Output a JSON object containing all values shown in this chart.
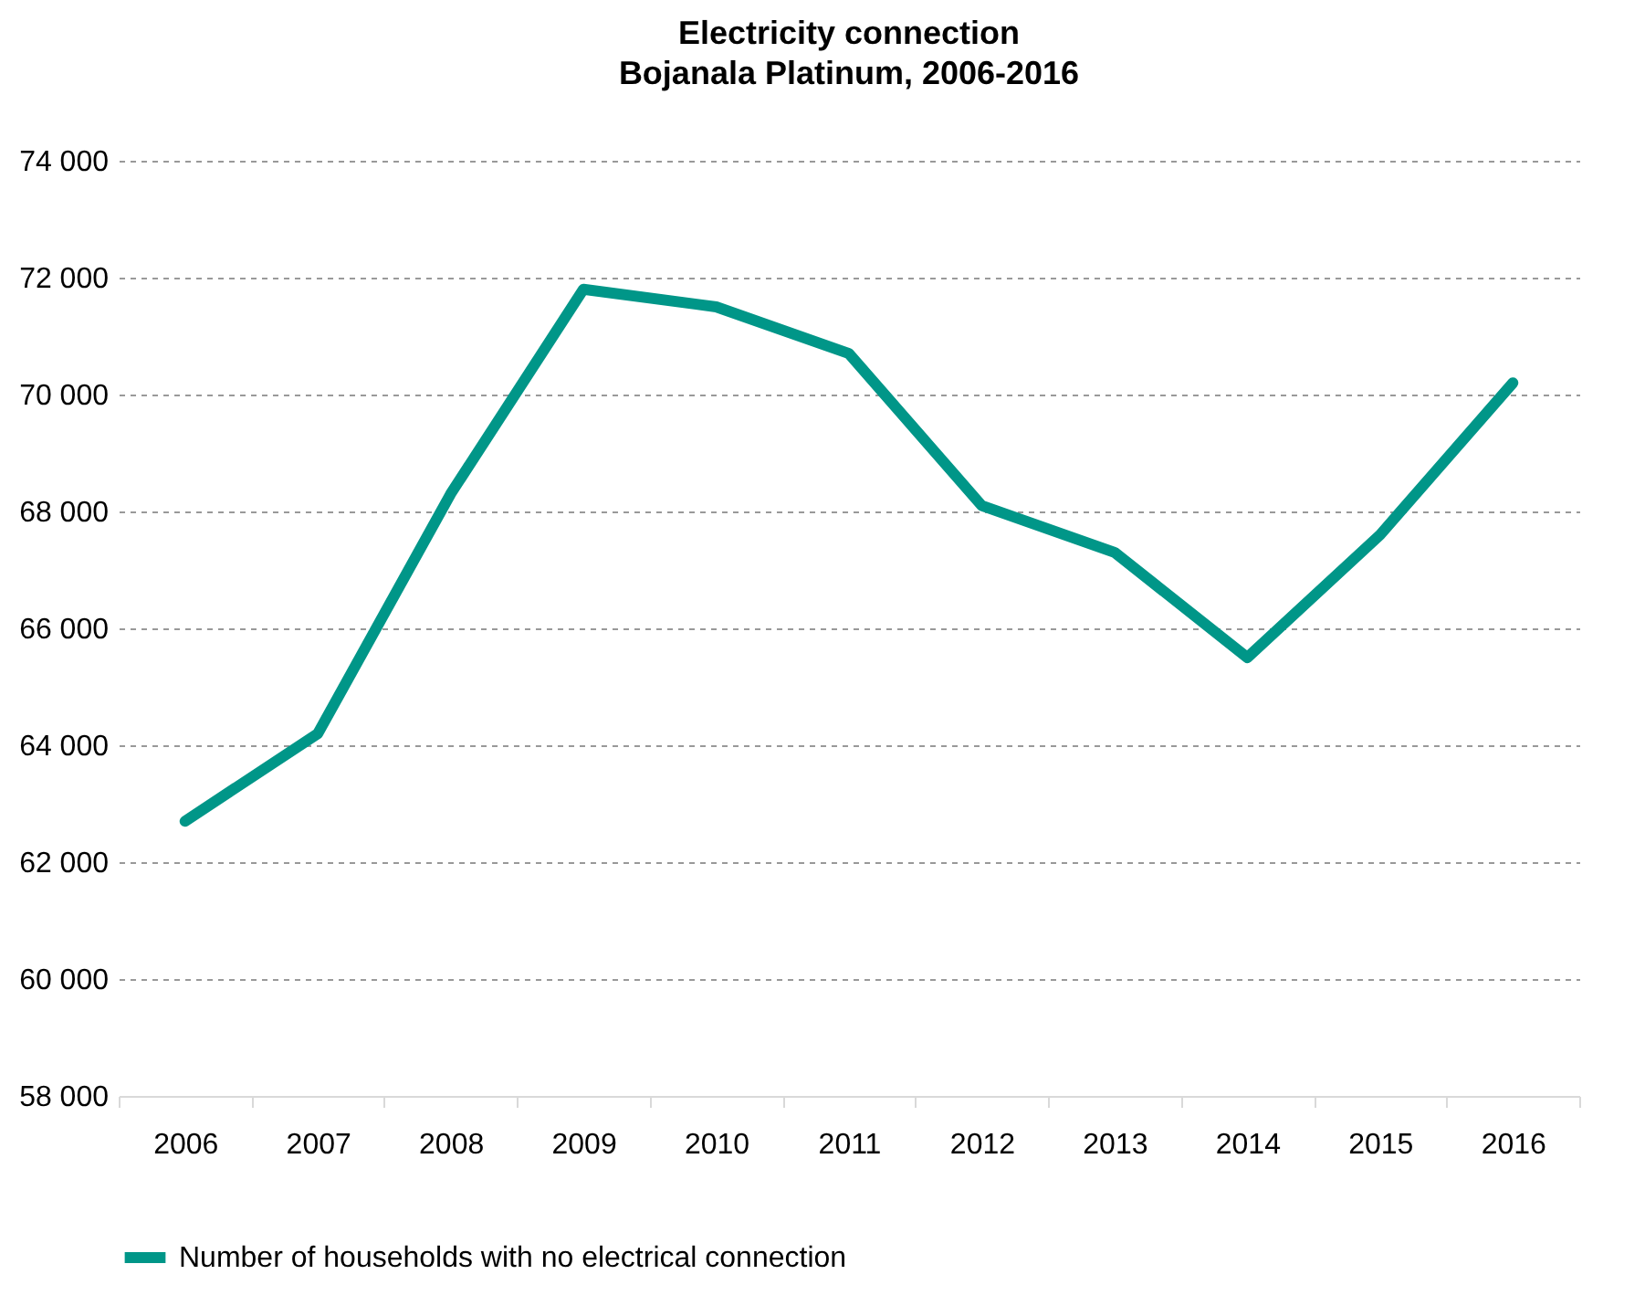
{
  "chart_data": {
    "type": "line",
    "title": "Electricity connection",
    "subtitle": "Bojanala Platinum, 2006-2016",
    "categories": [
      "2006",
      "2007",
      "2008",
      "2009",
      "2010",
      "2011",
      "2012",
      "2013",
      "2014",
      "2015",
      "2016"
    ],
    "series": [
      {
        "name": "Number of households with no electrical connection",
        "color": "#009688",
        "values": [
          62700,
          64200,
          68300,
          71800,
          71500,
          70700,
          68100,
          67300,
          65500,
          67600,
          70200
        ]
      }
    ],
    "ylim": [
      58000,
      74000
    ],
    "yticks": [
      {
        "value": 58000,
        "label": "58 000"
      },
      {
        "value": 60000,
        "label": "60 000"
      },
      {
        "value": 62000,
        "label": "62 000"
      },
      {
        "value": 64000,
        "label": "64 000"
      },
      {
        "value": 66000,
        "label": "66 000"
      },
      {
        "value": 68000,
        "label": "68 000"
      },
      {
        "value": 70000,
        "label": "70 000"
      },
      {
        "value": 72000,
        "label": "72 000"
      },
      {
        "value": 74000,
        "label": "74 000"
      }
    ],
    "grid": "y",
    "legend": "bottom",
    "line_style": "solid",
    "marker": "none"
  }
}
